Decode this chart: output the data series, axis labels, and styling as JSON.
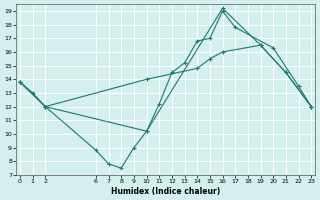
{
  "xlabel": "Humidex (Indice chaleur)",
  "bg_color": "#d5eeee",
  "line_color": "#1a7a6e",
  "grid_color": "#ffffff",
  "xlim": [
    -0.3,
    23.3
  ],
  "ylim": [
    7,
    19.5
  ],
  "xticks": [
    0,
    1,
    2,
    6,
    7,
    8,
    9,
    10,
    11,
    12,
    13,
    14,
    15,
    16,
    17,
    18,
    19,
    20,
    21,
    22,
    23
  ],
  "yticks": [
    7,
    8,
    9,
    10,
    11,
    12,
    13,
    14,
    15,
    16,
    17,
    18,
    19
  ],
  "line1_x": [
    0,
    1,
    2,
    10,
    11,
    12,
    13,
    14,
    15,
    16,
    17,
    20,
    22,
    23
  ],
  "line1_y": [
    13.8,
    13.0,
    12.0,
    10.2,
    12.2,
    14.5,
    15.2,
    16.8,
    17.0,
    19.0,
    17.8,
    16.3,
    13.5,
    12.0
  ],
  "line2_x": [
    0,
    2,
    6,
    7,
    8,
    9,
    10,
    16,
    19,
    21,
    23
  ],
  "line2_y": [
    13.8,
    12.0,
    8.8,
    7.8,
    7.5,
    9.0,
    10.2,
    19.2,
    16.5,
    14.5,
    12.0
  ],
  "line3_x": [
    0,
    2,
    10,
    14,
    15,
    16,
    19,
    21,
    23
  ],
  "line3_y": [
    13.8,
    12.0,
    14.0,
    14.8,
    15.5,
    16.0,
    16.5,
    14.5,
    12.0
  ],
  "figsize": [
    3.2,
    2.0
  ],
  "dpi": 100
}
